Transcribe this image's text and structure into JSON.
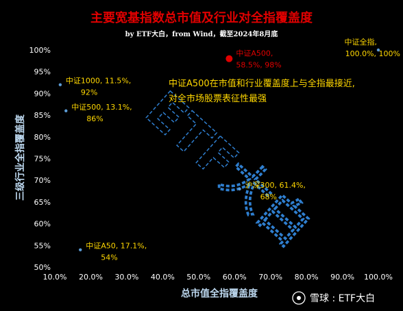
{
  "chart_data": {
    "type": "scatter",
    "title": "主要宽基指数总市值及行业对全指覆盖度",
    "subtitle": "by ETF大白，from Wind，截至2024年8月底",
    "xlabel": "总市值全指覆盖度",
    "ylabel": "三级行业全指覆盖度",
    "xlim": [
      0.1,
      1.0
    ],
    "ylim": [
      0.5,
      1.0
    ],
    "x_ticks": [
      "10.0%",
      "20.0%",
      "30.0%",
      "40.0%",
      "50.0%",
      "60.0%",
      "70.0%",
      "80.0%",
      "90.0%",
      "100.0%"
    ],
    "y_ticks": [
      "50%",
      "55%",
      "60%",
      "65%",
      "70%",
      "75%",
      "80%",
      "85%",
      "90%",
      "95%",
      "100%"
    ],
    "grid": false,
    "points": [
      {
        "label_line1": "中证全指,",
        "label_line2": "100.0%, 100%",
        "x": 1.0,
        "y": 1.0,
        "color": "#5b9bd5",
        "highlight": false
      },
      {
        "label_line1": "中证A500,",
        "label_line2": "58.5%, 98%",
        "x": 0.585,
        "y": 0.98,
        "color": "#e00000",
        "highlight": true
      },
      {
        "label_line1": "中证1000, 11.5%,",
        "label_line2": "92%",
        "x": 0.115,
        "y": 0.92,
        "color": "#5b9bd5",
        "highlight": false
      },
      {
        "label_line1": "中证500, 13.1%,",
        "label_line2": "86%",
        "x": 0.131,
        "y": 0.86,
        "color": "#5b9bd5",
        "highlight": false
      },
      {
        "label_line1": "沪深300, 61.4%,",
        "label_line2": "68%",
        "x": 0.614,
        "y": 0.68,
        "color": "#5b9bd5",
        "highlight": false
      },
      {
        "label_line1": "中证A50, 17.1%,",
        "label_line2": "54%",
        "x": 0.171,
        "y": 0.54,
        "color": "#5b9bd5",
        "highlight": false
      }
    ],
    "annotation_line1": "中证A500在市值和行业覆盖度上与全指最接近,",
    "annotation_line2": "对全市场股票表征性最强",
    "watermark_text": "ETF大白",
    "source_badge": "雪球 : ETF大白"
  },
  "colors": {
    "background": "#000000",
    "title": "#e00000",
    "text": "#ffffff",
    "label": "#ffd700",
    "axis_title": "#bcd7ee",
    "highlight": "#e00000",
    "point": "#5b9bd5"
  }
}
